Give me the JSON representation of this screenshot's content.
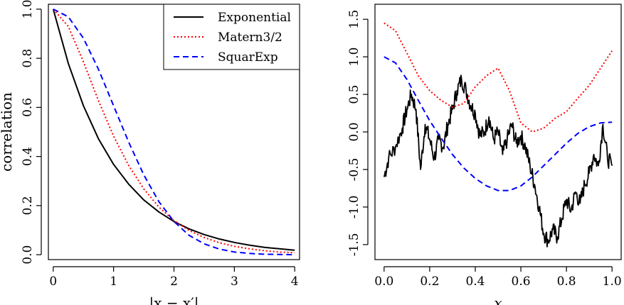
{
  "chart_data": [
    {
      "type": "line",
      "xlabel": "|x − x′|",
      "ylabel": "correlation",
      "xlim": [
        -0.08,
        4.08
      ],
      "ylim": [
        -0.02,
        1.02
      ],
      "xticks": [
        0,
        1,
        2,
        3,
        4
      ],
      "yticks": [
        0.0,
        0.2,
        0.4,
        0.6,
        0.8,
        1.0
      ],
      "xtick_labels": [
        "0",
        "1",
        "2",
        "3",
        "4"
      ],
      "ytick_labels": [
        "0.0",
        "0.2",
        "0.4",
        "0.6",
        "0.8",
        "1.0"
      ],
      "grid": false,
      "legend": "top-right",
      "x": [
        0,
        0.25,
        0.5,
        0.75,
        1.0,
        1.25,
        1.5,
        1.75,
        2.0,
        2.25,
        2.5,
        2.75,
        3.0,
        3.25,
        3.5,
        3.75,
        4.0
      ],
      "series": [
        {
          "name": "Exponential",
          "color": "#000000",
          "dash": "solid",
          "values": [
            1.0,
            0.779,
            0.607,
            0.472,
            0.368,
            0.287,
            0.223,
            0.174,
            0.135,
            0.105,
            0.082,
            0.064,
            0.05,
            0.039,
            0.03,
            0.024,
            0.018
          ]
        },
        {
          "name": "Matern3/2",
          "color": "#ff0000",
          "dash": "dotted",
          "values": [
            1.0,
            0.93,
            0.786,
            0.627,
            0.483,
            0.363,
            0.268,
            0.194,
            0.139,
            0.099,
            0.07,
            0.049,
            0.034,
            0.024,
            0.016,
            0.011,
            0.008
          ]
        },
        {
          "name": "SquarExp",
          "color": "#0000ff",
          "dash": "dashed",
          "values": [
            1.0,
            0.969,
            0.882,
            0.755,
            0.607,
            0.458,
            0.325,
            0.216,
            0.135,
            0.079,
            0.044,
            0.023,
            0.011,
            0.005,
            0.002,
            0.001,
            0.0003
          ]
        }
      ]
    },
    {
      "type": "line",
      "xlabel": "x",
      "ylabel": "",
      "xlim": [
        -0.04,
        1.04
      ],
      "ylim": [
        -1.7,
        1.7
      ],
      "xticks": [
        0.0,
        0.2,
        0.4,
        0.6,
        0.8,
        1.0
      ],
      "yticks": [
        -1.5,
        -1.0,
        -0.5,
        0.0,
        0.5,
        1.0,
        1.5
      ],
      "xtick_labels": [
        "0.0",
        "0.2",
        "0.4",
        "0.6",
        "0.8",
        "1.0"
      ],
      "ytick_labels": [
        "-1.5",
        "-1.0",
        "-0.5",
        "0.0",
        "0.5",
        "1.0",
        "1.5"
      ],
      "grid": false,
      "series": [
        {
          "color": "#000000",
          "dash": "solid",
          "rough": true,
          "x": [
            0.0,
            0.02,
            0.05,
            0.08,
            0.1,
            0.12,
            0.14,
            0.16,
            0.18,
            0.2,
            0.22,
            0.24,
            0.26,
            0.28,
            0.3,
            0.32,
            0.34,
            0.36,
            0.38,
            0.4,
            0.42,
            0.44,
            0.46,
            0.48,
            0.5,
            0.52,
            0.54,
            0.56,
            0.58,
            0.6,
            0.62,
            0.64,
            0.66,
            0.68,
            0.7,
            0.72,
            0.74,
            0.76,
            0.78,
            0.8,
            0.82,
            0.84,
            0.86,
            0.88,
            0.9,
            0.92,
            0.94,
            0.96,
            0.98,
            1.0
          ],
          "values": [
            -0.6,
            -0.35,
            -0.2,
            0.05,
            0.3,
            0.5,
            0.3,
            -0.5,
            0.1,
            -0.1,
            -0.35,
            -0.1,
            -0.2,
            0.1,
            0.3,
            0.55,
            0.7,
            0.55,
            0.35,
            0.25,
            -0.05,
            0.0,
            0.2,
            -0.1,
            0.0,
            -0.3,
            -0.1,
            0.1,
            -0.15,
            -0.05,
            -0.2,
            -0.45,
            -0.7,
            -1.0,
            -1.35,
            -1.45,
            -1.3,
            -1.4,
            -1.15,
            -0.9,
            -1.05,
            -0.8,
            -0.95,
            -0.7,
            -0.55,
            -0.3,
            -0.45,
            0.1,
            -0.35,
            -0.45
          ]
        },
        {
          "color": "#ff0000",
          "dash": "dotted",
          "x": [
            0.0,
            0.05,
            0.1,
            0.15,
            0.2,
            0.25,
            0.3,
            0.35,
            0.4,
            0.45,
            0.5,
            0.55,
            0.6,
            0.65,
            0.7,
            0.75,
            0.8,
            0.85,
            0.9,
            0.95,
            1.0
          ],
          "values": [
            1.45,
            1.35,
            1.05,
            0.75,
            0.55,
            0.42,
            0.33,
            0.38,
            0.6,
            0.75,
            0.85,
            0.55,
            0.12,
            0.0,
            0.05,
            0.18,
            0.27,
            0.45,
            0.62,
            0.85,
            1.08
          ]
        },
        {
          "color": "#0000ff",
          "dash": "dashed",
          "x": [
            0.0,
            0.05,
            0.1,
            0.15,
            0.2,
            0.25,
            0.3,
            0.35,
            0.4,
            0.45,
            0.5,
            0.55,
            0.6,
            0.65,
            0.7,
            0.75,
            0.8,
            0.85,
            0.9,
            0.95,
            1.0
          ],
          "values": [
            1.0,
            0.92,
            0.7,
            0.42,
            0.15,
            -0.08,
            -0.3,
            -0.48,
            -0.62,
            -0.72,
            -0.78,
            -0.78,
            -0.72,
            -0.6,
            -0.45,
            -0.3,
            -0.15,
            -0.02,
            0.07,
            0.12,
            0.13
          ]
        }
      ]
    }
  ]
}
